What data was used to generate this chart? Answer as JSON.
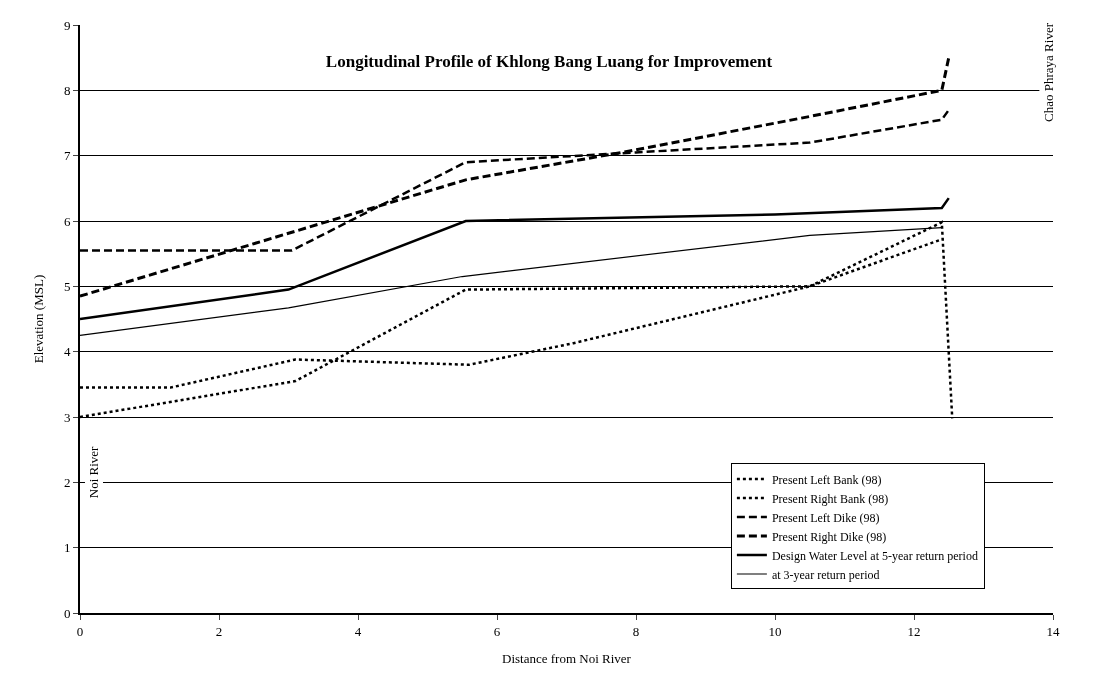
{
  "chart_data": {
    "type": "line",
    "title": "Longitudinal Profile of Khlong Bang Luang for Improvement",
    "xlabel": "Distance from Noi River",
    "ylabel": "Elevation (MSL)",
    "xlim": [
      0,
      14
    ],
    "xticks": [
      0,
      2,
      4,
      6,
      8,
      10,
      12,
      14
    ],
    "ylim": [
      0,
      9
    ],
    "yticks": [
      0,
      1,
      2,
      3,
      4,
      5,
      6,
      7,
      8,
      9
    ],
    "grid": "y",
    "legend": "bottom right",
    "marker": "none",
    "series": [
      {
        "name": "Present Left Bank (98)",
        "color": "#000000",
        "line_style": "dotted",
        "x": [
          0,
          1.3,
          3.1,
          5.6,
          7.1,
          10.5,
          12.4
        ],
        "values": [
          3.45,
          3.45,
          3.88,
          3.8,
          4.13,
          5.0,
          5.72
        ]
      },
      {
        "name": "Present Right Bank (98)",
        "color": "#000000",
        "line_style": "dotted",
        "x": [
          0,
          3.1,
          5.55,
          10.5,
          12.4,
          12.55
        ],
        "values": [
          3.0,
          3.55,
          4.95,
          5.0,
          5.98,
          2.98
        ]
      },
      {
        "name": "Present Left Dike (98)",
        "color": "#000000",
        "line_style": "dashed",
        "x": [
          0,
          3.05,
          5.55,
          8,
          10.5,
          12.4,
          12.5
        ],
        "values": [
          5.55,
          5.55,
          6.9,
          7.05,
          7.2,
          7.55,
          7.7
        ]
      },
      {
        "name": "Present Right Dike (98)",
        "color": "#000000",
        "line_style": "dashed",
        "x": [
          0,
          5.55,
          7.8,
          10.5,
          12.4,
          12.5
        ],
        "values": [
          4.85,
          6.63,
          7.05,
          7.6,
          8.0,
          8.5
        ]
      },
      {
        "name": "Design Water Level at 5-year return period",
        "color": "#000000",
        "line_style": "solid",
        "x": [
          0,
          3.0,
          5.55,
          10,
          12.4,
          12.5
        ],
        "values": [
          4.5,
          4.95,
          6.0,
          6.1,
          6.2,
          6.35
        ]
      },
      {
        "name": "at 3-year return period",
        "color": "#000000",
        "line_style": "solid",
        "x": [
          0,
          3.0,
          5.5,
          10.5,
          12.4
        ],
        "values": [
          4.25,
          4.67,
          5.15,
          5.78,
          5.9
        ]
      }
    ],
    "annotations": [
      "Noi River",
      "Chao Phraya River"
    ]
  }
}
